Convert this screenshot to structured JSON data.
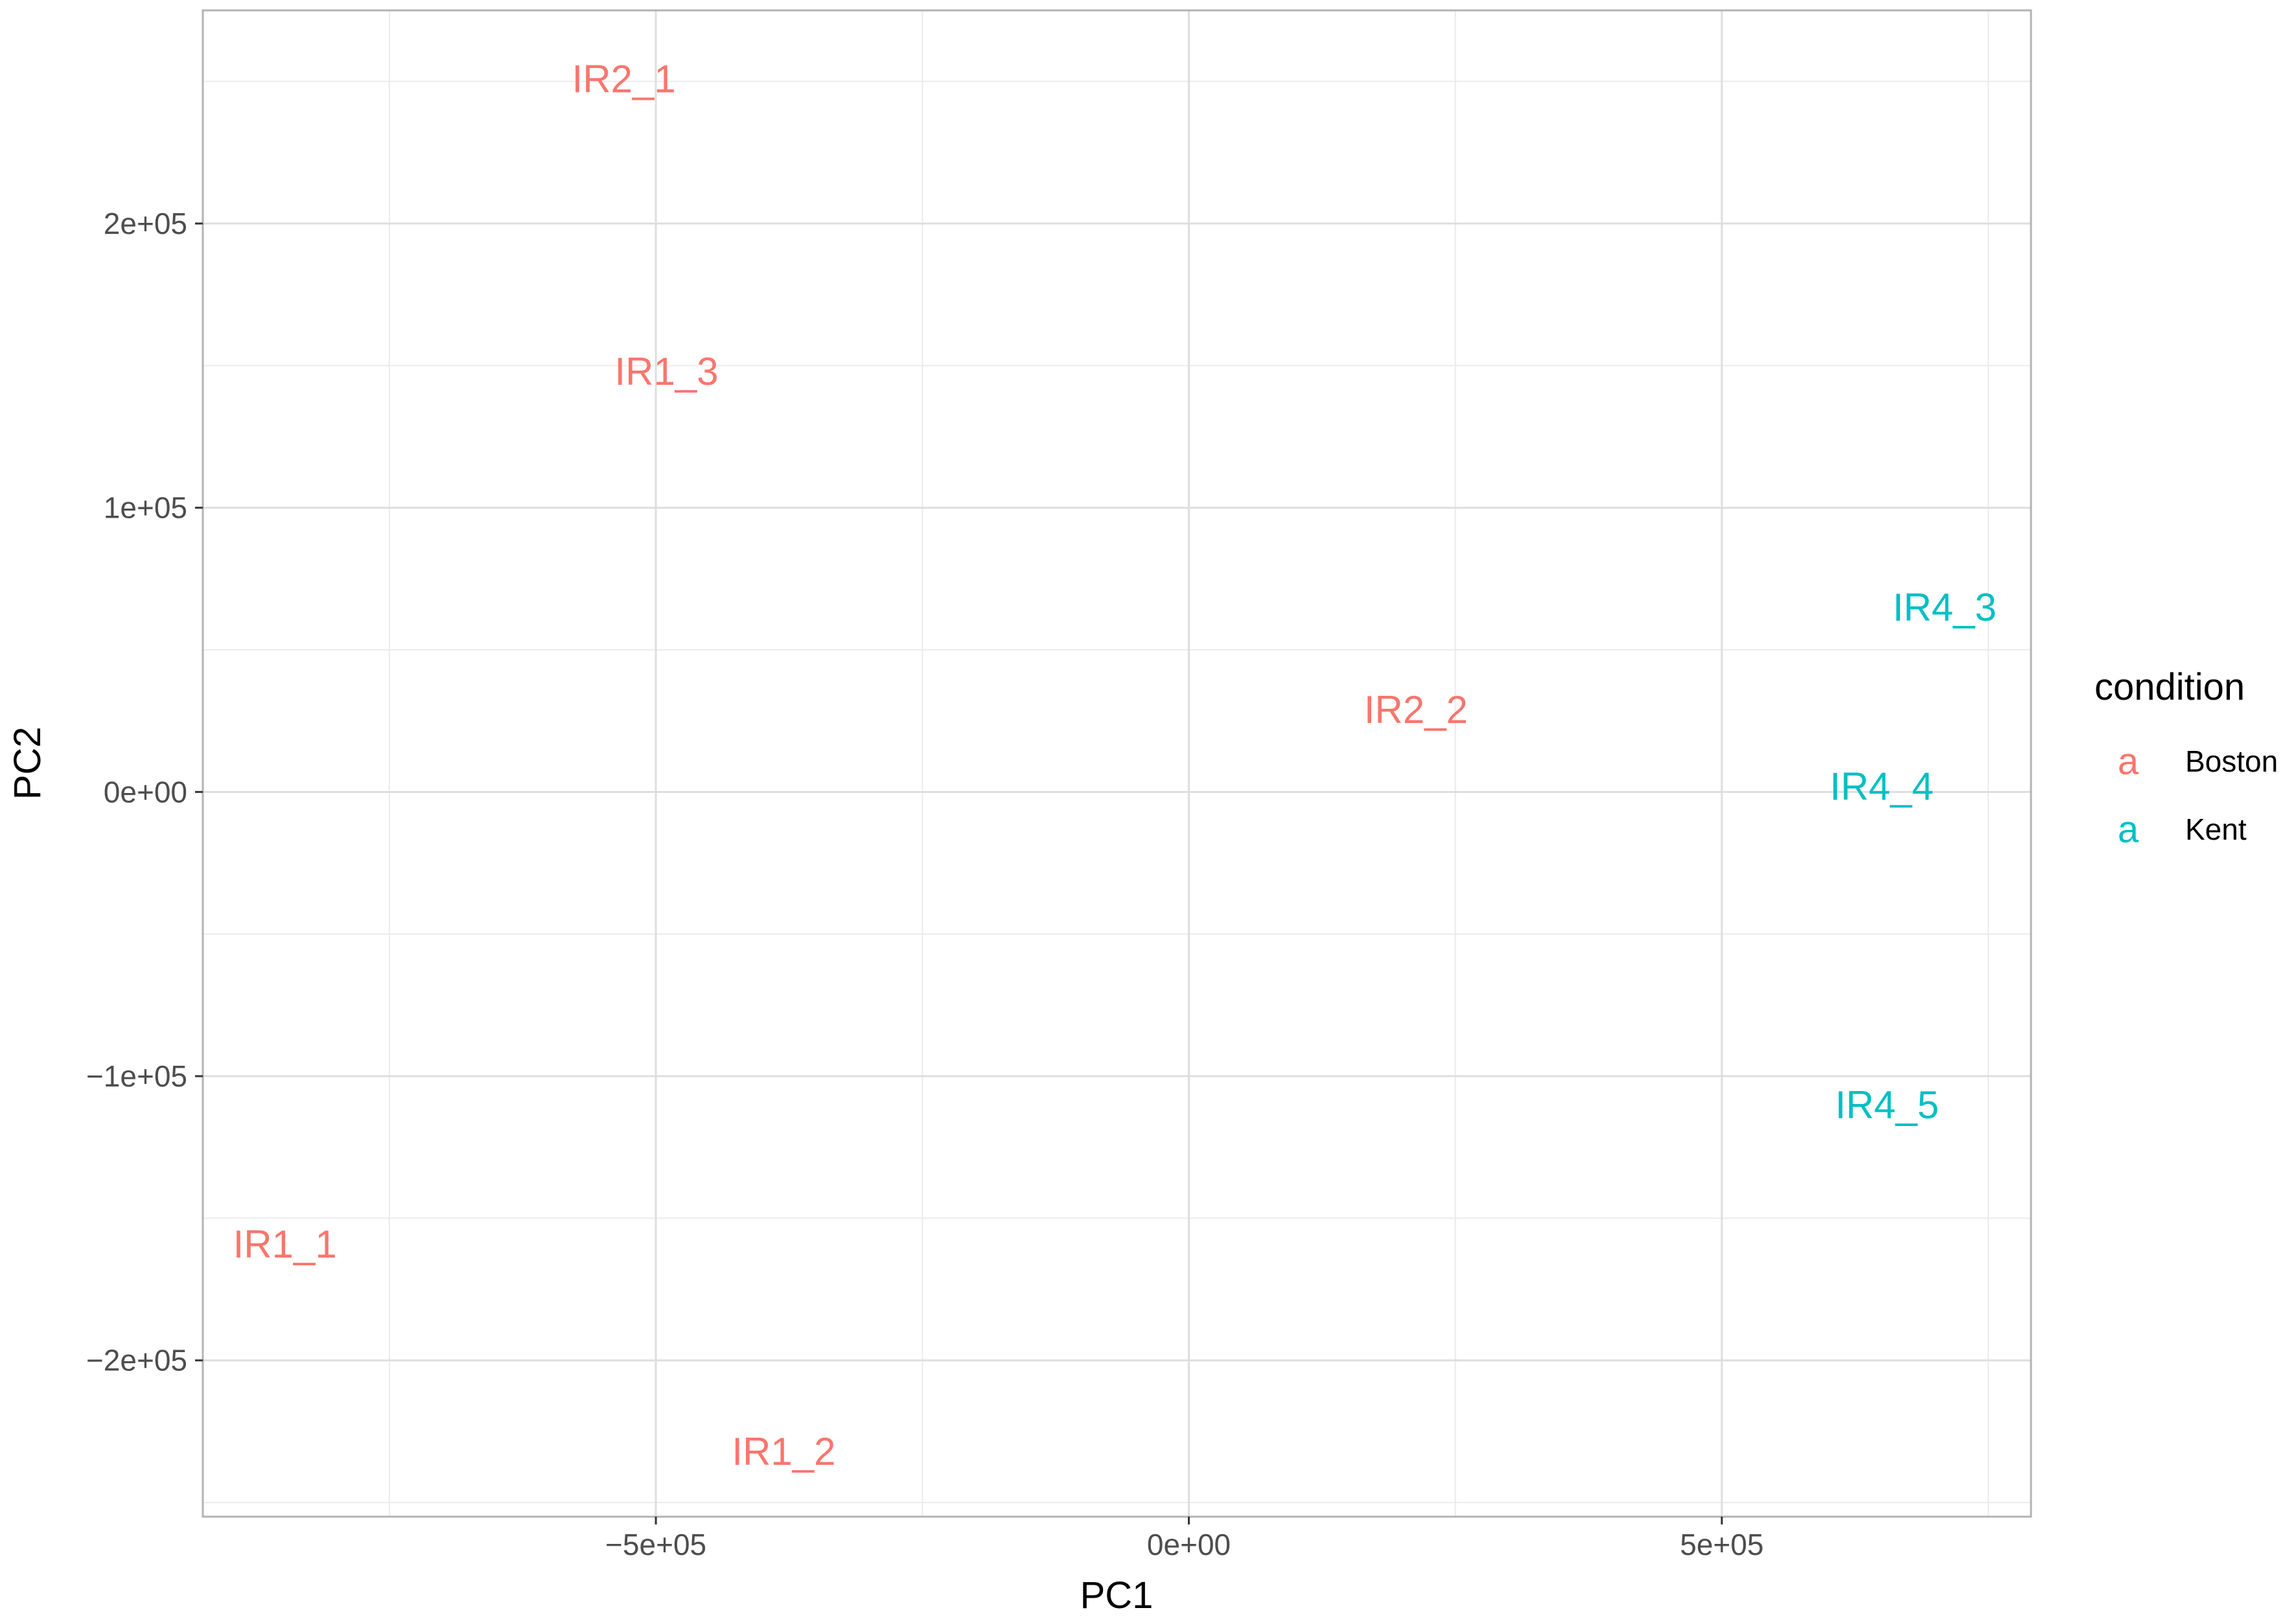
{
  "chart_data": {
    "type": "scatter",
    "xlabel": "PC1",
    "ylabel": "PC2",
    "xlim": [
      -925000,
      790000
    ],
    "ylim": [
      -255000,
      275000
    ],
    "xticks": [
      -500000,
      0,
      500000
    ],
    "xtick_labels": [
      "−5e+05",
      "0e+00",
      "5e+05"
    ],
    "yticks": [
      -200000,
      -100000,
      0,
      100000,
      200000
    ],
    "ytick_labels": [
      "−2e+05",
      "−1e+05",
      "0e+00",
      "1e+05",
      "2e+05"
    ],
    "grid": true,
    "legend": {
      "title": "condition",
      "position": "right",
      "key_glyph": "a",
      "entries": [
        {
          "name": "Boston",
          "color": "#F8766D"
        },
        {
          "name": "Kent",
          "color": "#00BFC4"
        }
      ]
    },
    "points": [
      {
        "label": "IR2_1",
        "x": -530000,
        "y": 251000,
        "group": "Boston"
      },
      {
        "label": "IR1_3",
        "x": -490000,
        "y": 148000,
        "group": "Boston"
      },
      {
        "label": "IR2_2",
        "x": 213000,
        "y": 29000,
        "group": "Boston"
      },
      {
        "label": "IR1_1",
        "x": -848000,
        "y": -159000,
        "group": "Boston"
      },
      {
        "label": "IR1_2",
        "x": -380000,
        "y": -232000,
        "group": "Boston"
      },
      {
        "label": "IR4_3",
        "x": 709000,
        "y": 65000,
        "group": "Kent"
      },
      {
        "label": "IR4_4",
        "x": 650000,
        "y": 2000,
        "group": "Kent"
      },
      {
        "label": "IR4_5",
        "x": 655000,
        "y": -110000,
        "group": "Kent"
      }
    ]
  }
}
